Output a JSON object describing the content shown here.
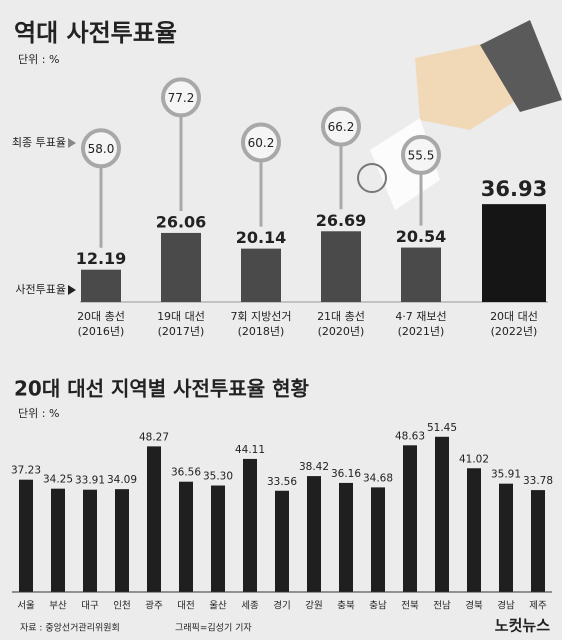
{
  "chart_data": [
    {
      "type": "lollipop-bar",
      "title": "역대 사전투표율",
      "subtitle": "단위 : %",
      "categories": [
        "20대 총선",
        "19대 대선",
        "7회 지방선거",
        "21대 총선",
        "4·7 재보선",
        "20대 대선"
      ],
      "category_years": [
        "(2016년)",
        "(2017년)",
        "(2018년)",
        "(2020년)",
        "(2021년)",
        "(2022년)"
      ],
      "series": [
        {
          "name": "사전투표율",
          "color": "#4a4a4a",
          "colors": [
            "#4a4a4a",
            "#4a4a4a",
            "#4a4a4a",
            "#4a4a4a",
            "#4a4a4a",
            "#151515"
          ],
          "values": [
            12.19,
            26.06,
            20.14,
            26.69,
            20.54,
            36.93
          ]
        },
        {
          "name": "최종 투표율",
          "color": "#a8a8a8",
          "values": [
            58.0,
            77.2,
            60.2,
            66.2,
            55.5,
            null
          ],
          "value_labels": [
            "58.0",
            "77.2",
            "60.2",
            "66.2",
            "55.5",
            null
          ]
        }
      ],
      "ylim": [
        0,
        100
      ]
    },
    {
      "type": "bar",
      "title": "20대 대선 지역별 사전투표율 현황",
      "subtitle": "단위 : %",
      "categories": [
        "서울",
        "부산",
        "대구",
        "인천",
        "광주",
        "대전",
        "울산",
        "세종",
        "경기",
        "강원",
        "충북",
        "충남",
        "전북",
        "전남",
        "경북",
        "경남",
        "제주"
      ],
      "values": [
        37.23,
        34.25,
        33.91,
        34.09,
        48.27,
        36.56,
        35.3,
        44.11,
        33.56,
        38.42,
        36.16,
        34.68,
        48.63,
        51.45,
        41.02,
        35.91,
        33.78
      ],
      "value_labels": [
        "37.23",
        "34.25",
        "33.91",
        "34.09",
        "48.27",
        "36.56",
        "35.30",
        "44.11",
        "33.56",
        "38.42",
        "36.16",
        "34.68",
        "48.63",
        "51.45",
        "41.02",
        "35.91",
        "33.78"
      ],
      "color": "#1f1f1f",
      "ylim": [
        0,
        60
      ]
    }
  ],
  "footer": {
    "source": "자료 : 중앙선거관리위원회",
    "credit": "그래픽=김성기 기자",
    "logo": "노컷뉴스"
  }
}
